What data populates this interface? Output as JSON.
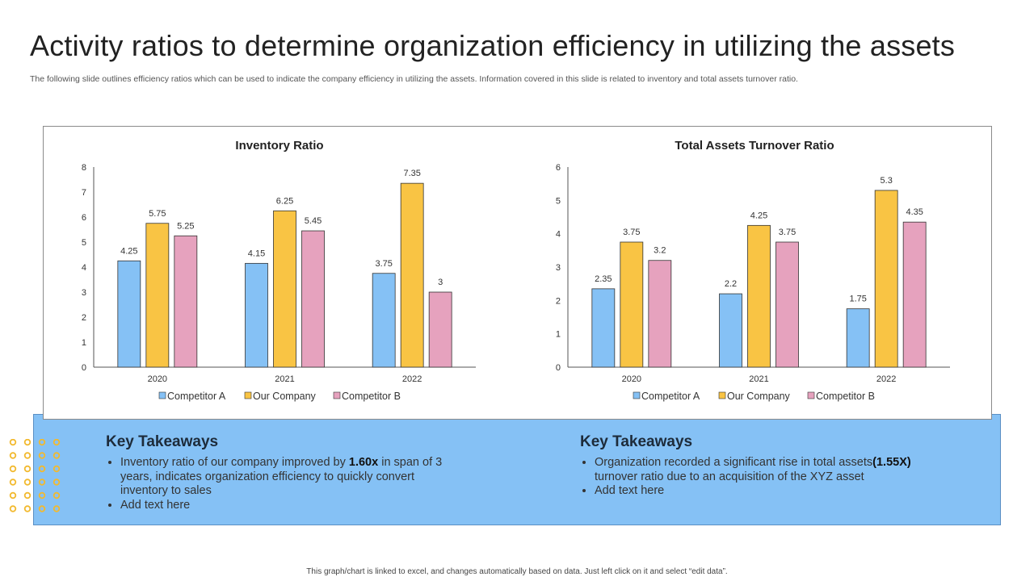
{
  "slide": {
    "title": "Activity ratios to determine organization efficiency in utilizing the assets",
    "subtitle": "The following slide outlines efficiency ratios which can be used to indicate the company efficiency in utilizing the assets. Information covered in this slide is related to inventory and total assets turnover ratio.",
    "footer": "This graph/chart is linked to excel, and changes automatically based on data. Just left click on it and select “edit data”."
  },
  "colors": {
    "competitor_a": "#85c1f5",
    "our_company": "#f9c444",
    "competitor_b": "#e6a2be",
    "band": "#85c1f5",
    "dot": "#f2b92e"
  },
  "chart_data": [
    {
      "type": "bar",
      "title": "Inventory Ratio",
      "categories": [
        "2020",
        "2021",
        "2022"
      ],
      "series": [
        {
          "name": "Competitor A",
          "values": [
            4.25,
            4.15,
            3.75
          ]
        },
        {
          "name": "Our Company",
          "values": [
            5.75,
            6.25,
            7.35
          ]
        },
        {
          "name": "Competitor B",
          "values": [
            5.25,
            5.45,
            3
          ]
        }
      ],
      "ylim": [
        0,
        8
      ],
      "yticks": [
        "0",
        "1",
        "2",
        "3",
        "4",
        "5",
        "6",
        "7",
        "8"
      ],
      "legend": "bottom",
      "grid": false
    },
    {
      "type": "bar",
      "title": "Total Assets Turnover Ratio",
      "categories": [
        "2020",
        "2021",
        "2022"
      ],
      "series": [
        {
          "name": "Competitor A",
          "values": [
            2.35,
            2.2,
            1.75
          ]
        },
        {
          "name": "Our Company",
          "values": [
            3.75,
            4.25,
            5.3
          ]
        },
        {
          "name": "Competitor B",
          "values": [
            3.2,
            3.75,
            4.35
          ]
        }
      ],
      "ylim": [
        0,
        6
      ],
      "yticks": [
        "0",
        "1",
        "2",
        "3",
        "4",
        "5",
        "6"
      ],
      "legend": "bottom",
      "grid": false
    }
  ],
  "takeaways": [
    {
      "heading": "Key Takeaways",
      "bullets": [
        {
          "pre": "Inventory ratio of our company improved by ",
          "bold": "1.60x",
          "post": " in span of 3 years, indicates organization efficiency to quickly convert inventory to sales"
        },
        {
          "pre": "Add text here",
          "bold": "",
          "post": ""
        }
      ]
    },
    {
      "heading": "Key Takeaways",
      "bullets": [
        {
          "pre": "Organization recorded a significant rise in total assets",
          "bold": "(1.55X)",
          "post": " turnover ratio due to an acquisition of the XYZ  asset"
        },
        {
          "pre": "Add text here",
          "bold": "",
          "post": ""
        }
      ]
    }
  ]
}
